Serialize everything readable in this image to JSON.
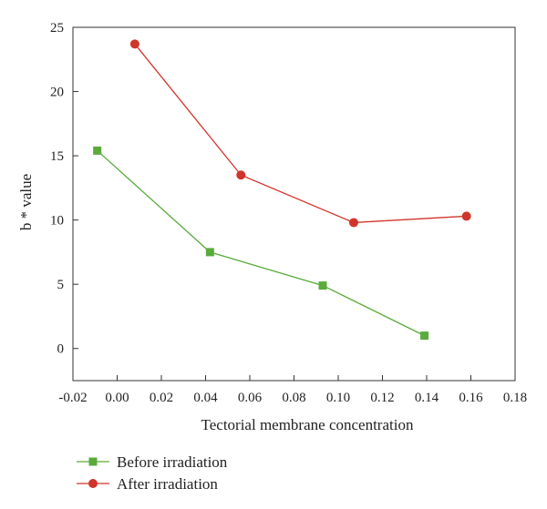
{
  "chart_data": {
    "type": "line",
    "title": "",
    "xlabel": "Tectorial membrane concentration",
    "ylabel": "b * value",
    "xlim": [
      -0.02,
      0.18
    ],
    "ylim": [
      -2.5,
      25
    ],
    "x_ticks": [
      -0.02,
      0.0,
      0.02,
      0.04,
      0.06,
      0.08,
      0.1,
      0.12,
      0.14,
      0.16,
      0.18
    ],
    "x_tick_labels": [
      "-0.02",
      "0.00",
      "0.02",
      "0.04",
      "0.06",
      "0.08",
      "0.10",
      "0.12",
      "0.14",
      "0.16",
      "0.18"
    ],
    "y_ticks": [
      0,
      5,
      10,
      15,
      20,
      25
    ],
    "y_tick_labels": [
      "0",
      "5",
      "10",
      "15",
      "20",
      "25"
    ],
    "grid": false,
    "legend_position": "bottom-left",
    "series": [
      {
        "name": "Before irradiation",
        "color": "#5aab3c",
        "marker": "square",
        "x": [
          -0.009,
          0.042,
          0.093,
          0.139
        ],
        "y": [
          15.4,
          7.5,
          4.9,
          1.0
        ]
      },
      {
        "name": "After irradiation",
        "color": "#d0352b",
        "marker": "circle",
        "x": [
          0.008,
          0.056,
          0.107,
          0.158
        ],
        "y": [
          23.7,
          13.5,
          9.8,
          10.3
        ]
      }
    ]
  }
}
